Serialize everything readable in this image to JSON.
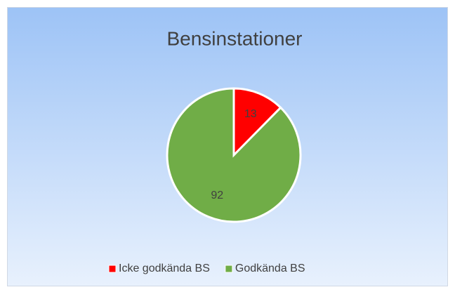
{
  "chart_data": {
    "type": "pie",
    "title": "Bensinstationer",
    "categories": [
      "Icke godkända BS",
      "Godkända BS"
    ],
    "values": [
      13,
      92
    ],
    "colors": [
      "#ff0000",
      "#70ad47"
    ],
    "legend": "bottom"
  }
}
